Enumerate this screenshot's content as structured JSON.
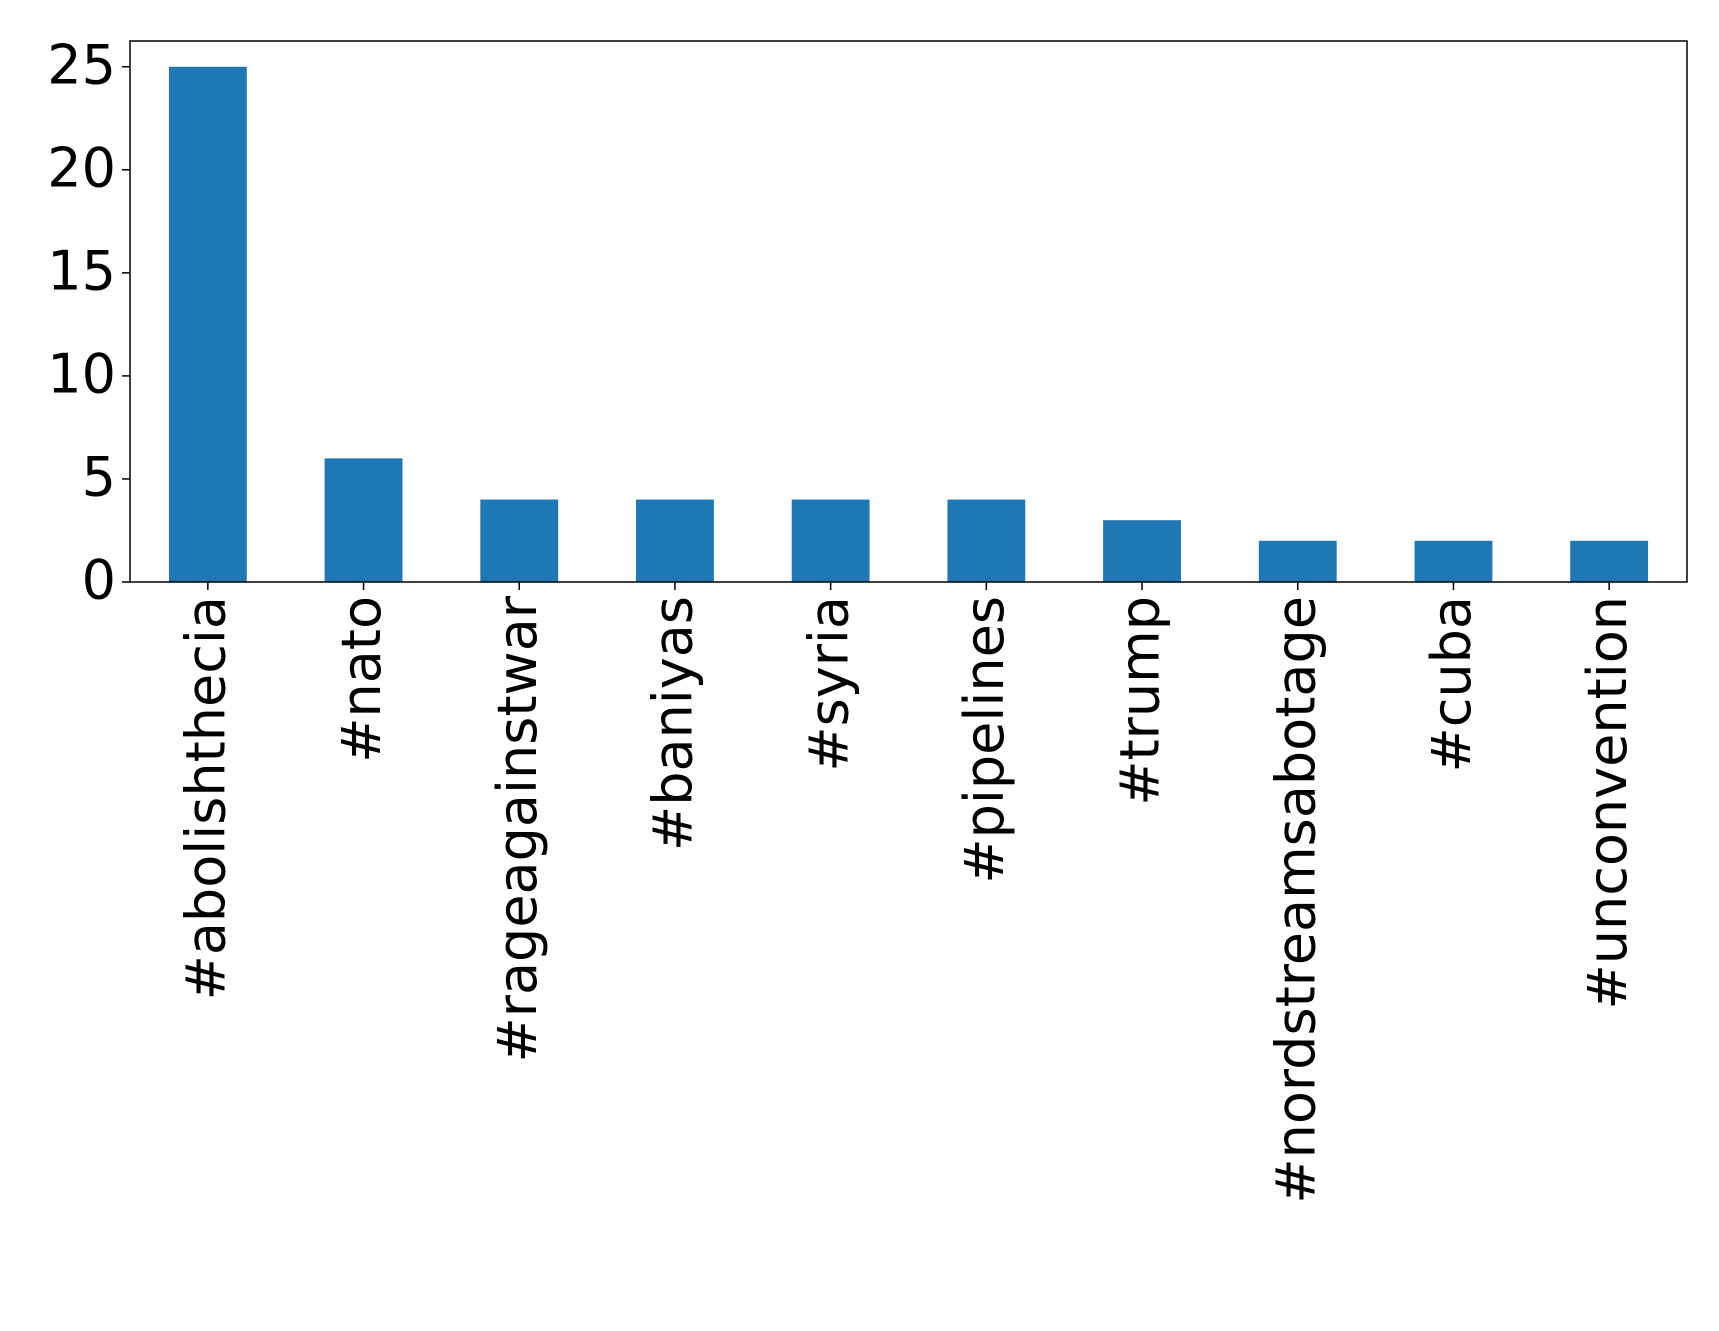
{
  "chart_data": {
    "type": "bar",
    "categories": [
      "#abolishthecia",
      "#nato",
      "#rageagainstwar",
      "#baniyas",
      "#syria",
      "#pipelines",
      "#trump",
      "#nordstreamsabotage",
      "#cuba",
      "#unconvention"
    ],
    "values": [
      25,
      6,
      4,
      4,
      4,
      4,
      3,
      2,
      2,
      2
    ],
    "color": "#1f77b4",
    "ylim": [
      0,
      26.25
    ],
    "yticks": [
      0,
      5,
      10,
      15,
      20,
      25
    ],
    "grid": false
  }
}
